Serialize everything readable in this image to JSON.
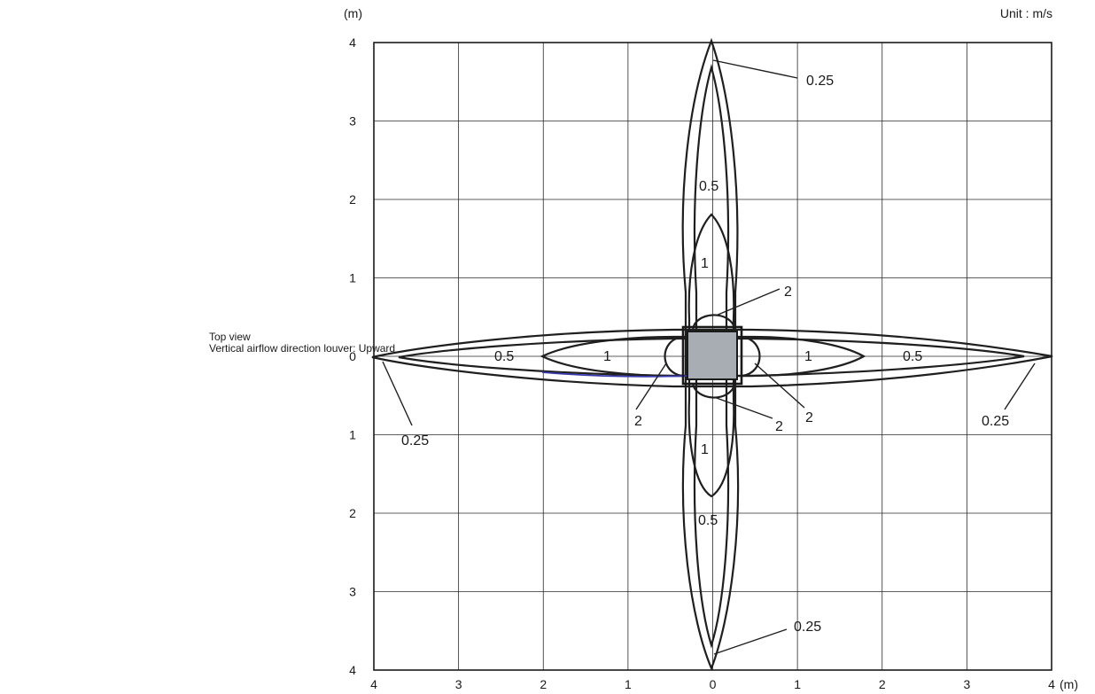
{
  "caption": {
    "line1": "Top view",
    "line2": "Vertical airflow direction louver: Upward"
  },
  "unit_label": "Unit : m/s",
  "axis": {
    "y_unit": "(m)",
    "x_unit": "(m)",
    "y_ticks": [
      "4",
      "3",
      "2",
      "1",
      "0",
      "1",
      "2",
      "3",
      "4"
    ],
    "x_ticks": [
      "4",
      "3",
      "2",
      "1",
      "0",
      "1",
      "2",
      "3",
      "4"
    ],
    "range_m": [
      -4,
      4
    ]
  },
  "colors": {
    "contour": "#1f1f1f",
    "unit_fill": "#a7adb3",
    "accent_line": "#3a3ab0"
  },
  "contours": [
    {
      "velocity": "0.25",
      "reach_m": 4.0
    },
    {
      "velocity": "0.5",
      "reach_m": 3.7
    },
    {
      "velocity": "1",
      "reach_m": 1.8
    },
    {
      "velocity": "2",
      "reach_m": 0.55
    }
  ],
  "labels": {
    "top_025": "0.25",
    "top_05": "0.5",
    "top_1": "1",
    "top_2": "2",
    "left_05": "0.5",
    "left_1": "1",
    "left_2": "2",
    "left_025": "0.25",
    "right_1": "1",
    "right_05": "0.5",
    "right_2": "2",
    "right_025": "0.25",
    "bottom_2": "2",
    "bottom_1": "1",
    "bottom_05": "0.5",
    "bottom_025": "0.25"
  }
}
